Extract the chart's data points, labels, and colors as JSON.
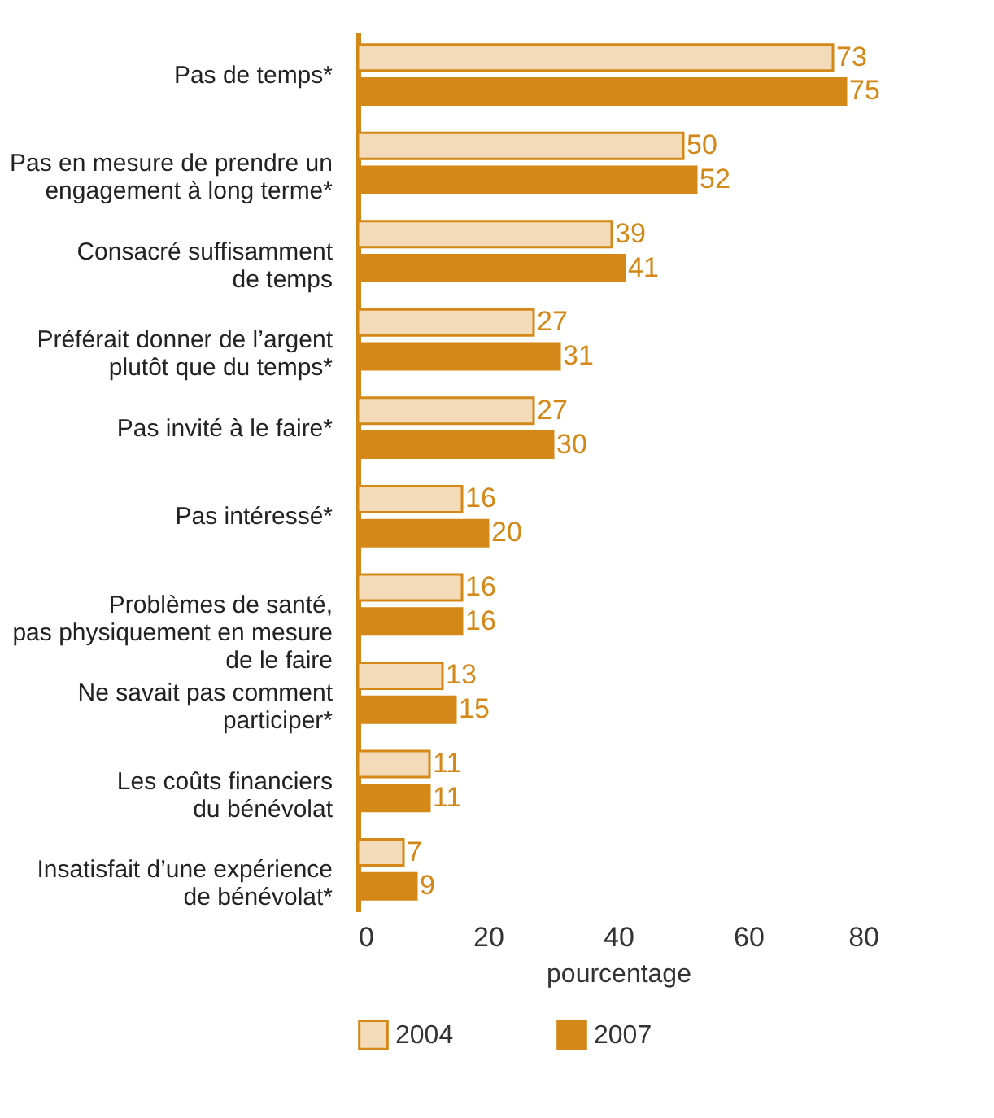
{
  "chart_data": {
    "type": "bar",
    "orientation": "horizontal",
    "xlabel": "pourcentage",
    "categories": [
      "Pas de temps*",
      "Pas en mesure de prendre un\nengagement à long terme*",
      "Consacré suffisamment\nde temps",
      "Préférait donner de l’argent\nplutôt que du temps*",
      "Pas invité à le faire*",
      "Pas intéressé*",
      "Problèmes de santé,\npas physiquement en mesure\nde le faire",
      "Ne savait pas comment\nparticiper*",
      "Les coûts financiers\ndu bénévolat",
      "Insatisfait d’une expérience\nde bénévolat*"
    ],
    "series": [
      {
        "name": "2004",
        "color": "#f3dab8",
        "values": [
          73,
          50,
          39,
          27,
          27,
          16,
          16,
          13,
          11,
          7
        ]
      },
      {
        "name": "2007",
        "color": "#d38817",
        "values": [
          75,
          52,
          41,
          31,
          30,
          20,
          16,
          15,
          11,
          9
        ]
      }
    ],
    "xlim": [
      0,
      80
    ],
    "xticks": [
      0,
      20,
      40,
      60,
      80
    ],
    "data_labels": true,
    "grid": false,
    "legend": "bottom"
  }
}
